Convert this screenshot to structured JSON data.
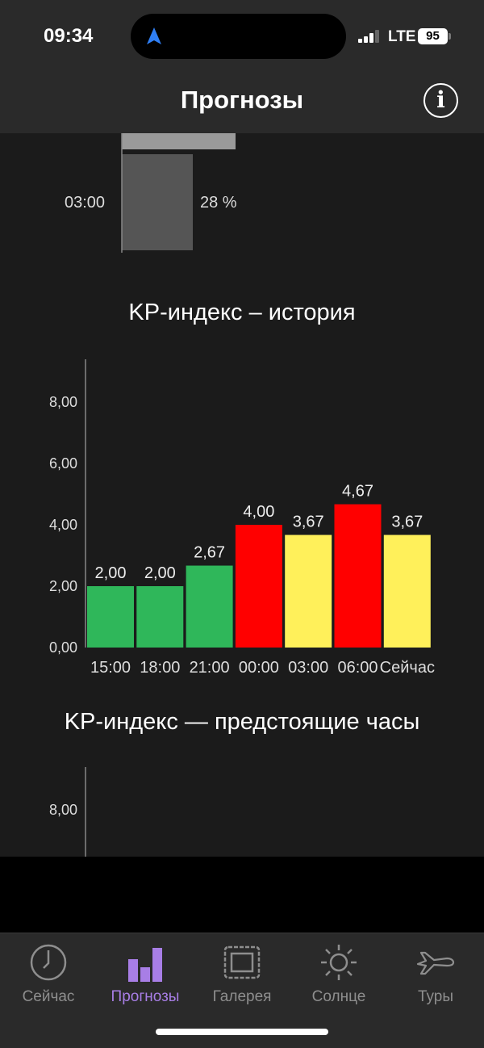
{
  "status": {
    "time": "09:34",
    "network": "LTE",
    "battery": "95"
  },
  "header": {
    "title": "Прогнозы",
    "info_icon": "info-circle-icon"
  },
  "cloud": {
    "time": "03:00",
    "percent": "28 %"
  },
  "history": {
    "title": "KP-индекс – история",
    "chart_data": {
      "type": "bar",
      "title": "KP-индекс – история",
      "categories": [
        "15:00",
        "18:00",
        "21:00",
        "00:00",
        "03:00",
        "06:00",
        "Сейчас"
      ],
      "values": [
        2.0,
        2.0,
        2.67,
        4.0,
        3.67,
        4.67,
        3.67
      ],
      "value_labels": [
        "2,00",
        "2,00",
        "2,67",
        "4,00",
        "3,67",
        "4,67",
        "3,67"
      ],
      "colors": [
        "#2fb75a",
        "#2fb75a",
        "#2fb75a",
        "#ff0000",
        "#fff05a",
        "#ff0000",
        "#fff05a"
      ],
      "yticks": [
        "0,00",
        "2,00",
        "4,00",
        "6,00",
        "8,00"
      ],
      "ylim": [
        0,
        9.4
      ]
    }
  },
  "upcoming": {
    "title": "KP-индекс — предстоящие часы",
    "ytick_visible": "8,00"
  },
  "tabs": [
    {
      "label": "Сейчас",
      "icon": "clock-icon",
      "active": false
    },
    {
      "label": "Прогнозы",
      "icon": "bar-chart-icon",
      "active": true
    },
    {
      "label": "Галерея",
      "icon": "gallery-frame-icon",
      "active": false
    },
    {
      "label": "Солнце",
      "icon": "sun-icon",
      "active": false
    },
    {
      "label": "Туры",
      "icon": "airplane-icon",
      "active": false
    }
  ]
}
